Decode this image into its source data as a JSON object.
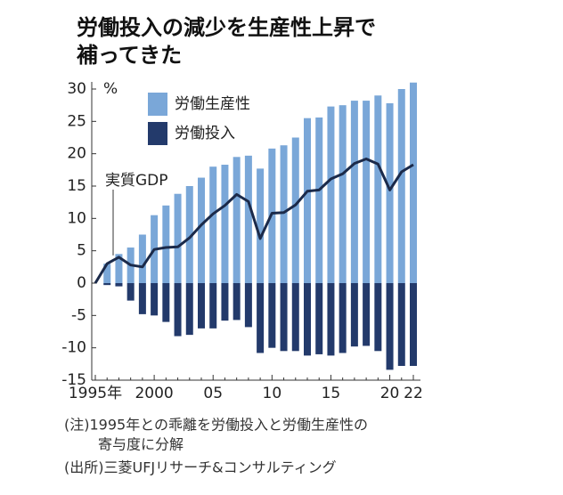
{
  "chart_data": {
    "type": "bar",
    "title": [
      "労働投入の減少を生産性上昇で",
      "補ってきた"
    ],
    "categories": [
      "1995年",
      null,
      null,
      null,
      null,
      "2000",
      null,
      null,
      null,
      null,
      "05",
      null,
      null,
      null,
      null,
      "10",
      null,
      null,
      null,
      null,
      "15",
      null,
      null,
      null,
      null,
      "20",
      null,
      "22"
    ],
    "series": [
      {
        "name": "労働生産性",
        "color": "#7aa7d8",
        "values": [
          0,
          3.0,
          4.5,
          5.5,
          7.5,
          10.5,
          12,
          13.8,
          15,
          16.3,
          18,
          18.3,
          19.5,
          19.7,
          17.7,
          20.8,
          21.3,
          22.5,
          25.5,
          25.6,
          27.3,
          27.5,
          28.2,
          28.2,
          29,
          27.8,
          30,
          31
        ]
      },
      {
        "name": "労働投入",
        "color": "#233a6b",
        "values": [
          0,
          -0.3,
          -0.5,
          -2.7,
          -4.8,
          -5,
          -6,
          -8.2,
          -8,
          -7,
          -7,
          -5.8,
          -5.7,
          -6.8,
          -10.8,
          -10,
          -10.5,
          -10.5,
          -11.2,
          -11,
          -11.2,
          -10.8,
          -9.8,
          -9.7,
          -10.5,
          -13.4,
          -12.8,
          -12.8
        ]
      },
      {
        "name": "実質GDP",
        "type": "line",
        "color": "#1b2a4a",
        "values": [
          0,
          3,
          4,
          2.8,
          2.5,
          5.2,
          5.5,
          5.6,
          7,
          9,
          10.7,
          12,
          13.7,
          12.6,
          6.9,
          10.8,
          10.9,
          12.1,
          14.2,
          14.4,
          16.1,
          16.9,
          18.5,
          19.2,
          18.4,
          14.4,
          17.2,
          18.3
        ]
      }
    ],
    "y_unit": "%",
    "ylim": [
      -15,
      30
    ],
    "yticks": [
      30,
      25,
      20,
      15,
      10,
      5,
      0,
      -5,
      -10,
      -15
    ],
    "notes": [
      "(注)1995年との乖離を労働投入と労働生産性の",
      "寄与度に分解",
      "(出所)三菱UFJリサーチ&コンサルティング"
    ]
  }
}
